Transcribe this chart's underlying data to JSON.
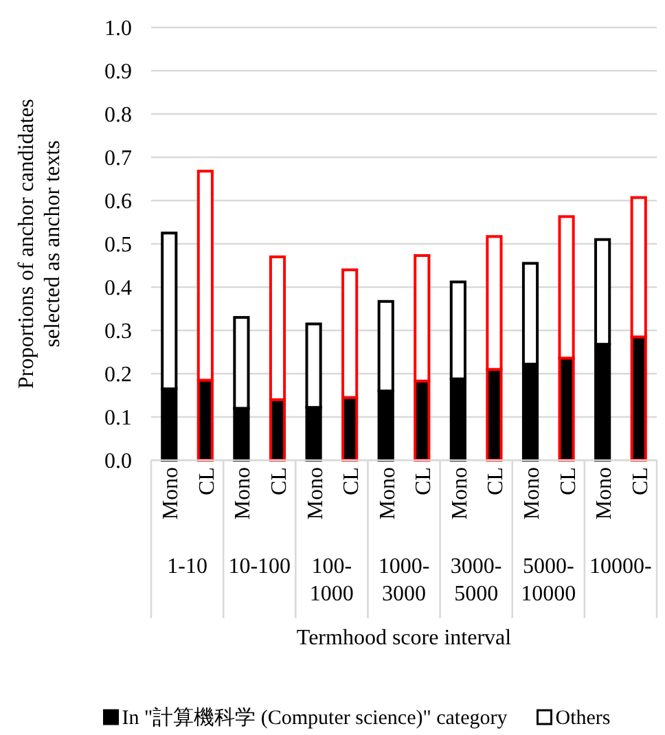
{
  "chart_data": {
    "type": "bar",
    "stacked": true,
    "xlabel": "Termhood score interval",
    "ylabel": "Proportions of anchor candidates selected as anchor texts",
    "categories": [
      "Mono",
      "CL",
      "Mono",
      "CL",
      "Mono",
      "CL",
      "Mono",
      "CL",
      "Mono",
      "CL",
      "Mono",
      "CL",
      "Mono",
      "CL"
    ],
    "annotations": [
      "1-10",
      "10-100",
      "100-1000",
      "1000-3000",
      "3000-5000",
      "5000-10000",
      "10000-"
    ],
    "series": [
      {
        "name": "In \"計算機科学 (Computer science)\" category",
        "color": "#000000",
        "values": [
          0.165,
          0.185,
          0.12,
          0.14,
          0.122,
          0.145,
          0.16,
          0.183,
          0.188,
          0.21,
          0.222,
          0.236,
          0.268,
          0.285
        ]
      },
      {
        "name": "Others",
        "color": "#ffffff",
        "values": [
          0.36,
          0.483,
          0.21,
          0.33,
          0.193,
          0.295,
          0.207,
          0.29,
          0.224,
          0.307,
          0.233,
          0.327,
          0.242,
          0.322
        ]
      }
    ],
    "ylim": [
      0,
      1
    ],
    "yticks": [
      {
        "value": 0,
        "label": "0.0"
      },
      {
        "value": 0.1,
        "label": "0.1"
      },
      {
        "value": 0.2,
        "label": "0.2"
      },
      {
        "value": 0.3,
        "label": "0.3"
      },
      {
        "value": 0.4,
        "label": "0.4"
      },
      {
        "value": 0.5,
        "label": "0.5"
      },
      {
        "value": 0.6,
        "label": "0.6"
      },
      {
        "value": 0.7,
        "label": "0.7"
      },
      {
        "value": 0.8,
        "label": "0.8"
      },
      {
        "value": 0.9,
        "label": "0.9"
      },
      {
        "value": 1,
        "label": "1.0"
      }
    ],
    "grid": "y",
    "legend": "bottom"
  }
}
